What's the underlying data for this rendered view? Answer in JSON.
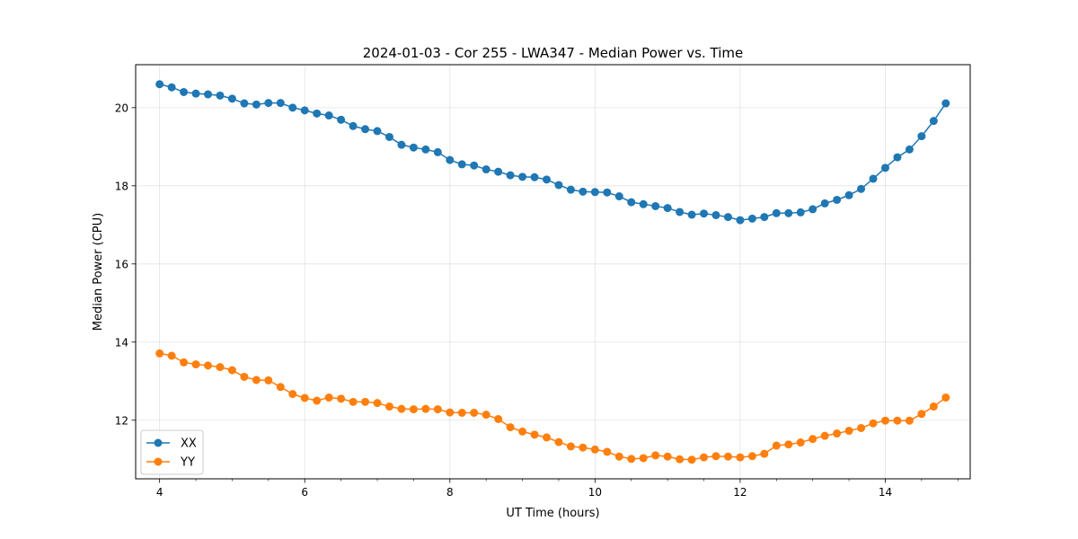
{
  "chart_data": {
    "type": "line",
    "title": "2024-01-03 - Cor 255 - LWA347 - Median Power vs. Time",
    "xlabel": "UT Time (hours)",
    "ylabel": "Median Power (CPU)",
    "xlim": [
      3.67,
      15.17
    ],
    "ylim": [
      10.5,
      21.1
    ],
    "xticks": [
      4,
      6,
      8,
      10,
      12,
      14
    ],
    "xtick_labels": [
      "4",
      "6",
      "8",
      "10",
      "12",
      "14"
    ],
    "yticks": [
      12,
      14,
      16,
      18,
      20
    ],
    "ytick_labels": [
      "12",
      "14",
      "16",
      "18",
      "20"
    ],
    "grid": true,
    "legend_position": "lower-left",
    "x": [
      4.0,
      4.1667,
      4.3333,
      4.5,
      4.6667,
      4.8333,
      5.0,
      5.1667,
      5.3333,
      5.5,
      5.6667,
      5.8333,
      6.0,
      6.1667,
      6.3333,
      6.5,
      6.6667,
      6.8333,
      7.0,
      7.1667,
      7.3333,
      7.5,
      7.6667,
      7.8333,
      8.0,
      8.1667,
      8.3333,
      8.5,
      8.6667,
      8.8333,
      9.0,
      9.1667,
      9.3333,
      9.5,
      9.6667,
      9.8333,
      10.0,
      10.1667,
      10.3333,
      10.5,
      10.6667,
      10.8333,
      11.0,
      11.1667,
      11.3333,
      11.5,
      11.6667,
      11.8333,
      12.0,
      12.1667,
      12.3333,
      12.5,
      12.6667,
      12.8333,
      13.0,
      13.1667,
      13.3333,
      13.5,
      13.6667,
      13.8333,
      14.0,
      14.1667,
      14.3333,
      14.5,
      14.6667,
      14.8333
    ],
    "series": [
      {
        "name": "XX",
        "color": "#1f77b4",
        "values": [
          20.6,
          20.52,
          20.4,
          20.36,
          20.34,
          20.31,
          20.23,
          20.11,
          20.08,
          20.12,
          20.12,
          20.0,
          19.93,
          19.85,
          19.8,
          19.69,
          19.53,
          19.45,
          19.4,
          19.25,
          19.05,
          18.98,
          18.93,
          18.86,
          18.66,
          18.55,
          18.52,
          18.42,
          18.36,
          18.27,
          18.23,
          18.22,
          18.16,
          18.02,
          17.9,
          17.85,
          17.84,
          17.83,
          17.73,
          17.58,
          17.53,
          17.48,
          17.43,
          17.33,
          17.26,
          17.29,
          17.25,
          17.2,
          17.12,
          17.16,
          17.2,
          17.3,
          17.3,
          17.32,
          17.4,
          17.55,
          17.64,
          17.76,
          17.92,
          18.18,
          18.46,
          18.73,
          18.93,
          19.27,
          19.66,
          20.11
        ]
      },
      {
        "name": "YY",
        "color": "#ff7f0e",
        "values": [
          13.71,
          13.65,
          13.48,
          13.43,
          13.4,
          13.36,
          13.28,
          13.11,
          13.03,
          13.02,
          12.85,
          12.67,
          12.57,
          12.5,
          12.58,
          12.55,
          12.47,
          12.47,
          12.44,
          12.35,
          12.29,
          12.28,
          12.29,
          12.28,
          12.2,
          12.19,
          12.19,
          12.14,
          12.03,
          11.82,
          11.71,
          11.63,
          11.56,
          11.44,
          11.33,
          11.3,
          11.25,
          11.19,
          11.07,
          11.01,
          11.03,
          11.1,
          11.07,
          11.0,
          10.99,
          11.05,
          11.08,
          11.07,
          11.05,
          11.08,
          11.14,
          11.35,
          11.38,
          11.43,
          11.52,
          11.6,
          11.66,
          11.73,
          11.8,
          11.92,
          11.99,
          11.99,
          11.99,
          12.16,
          12.35,
          12.58
        ]
      }
    ]
  }
}
